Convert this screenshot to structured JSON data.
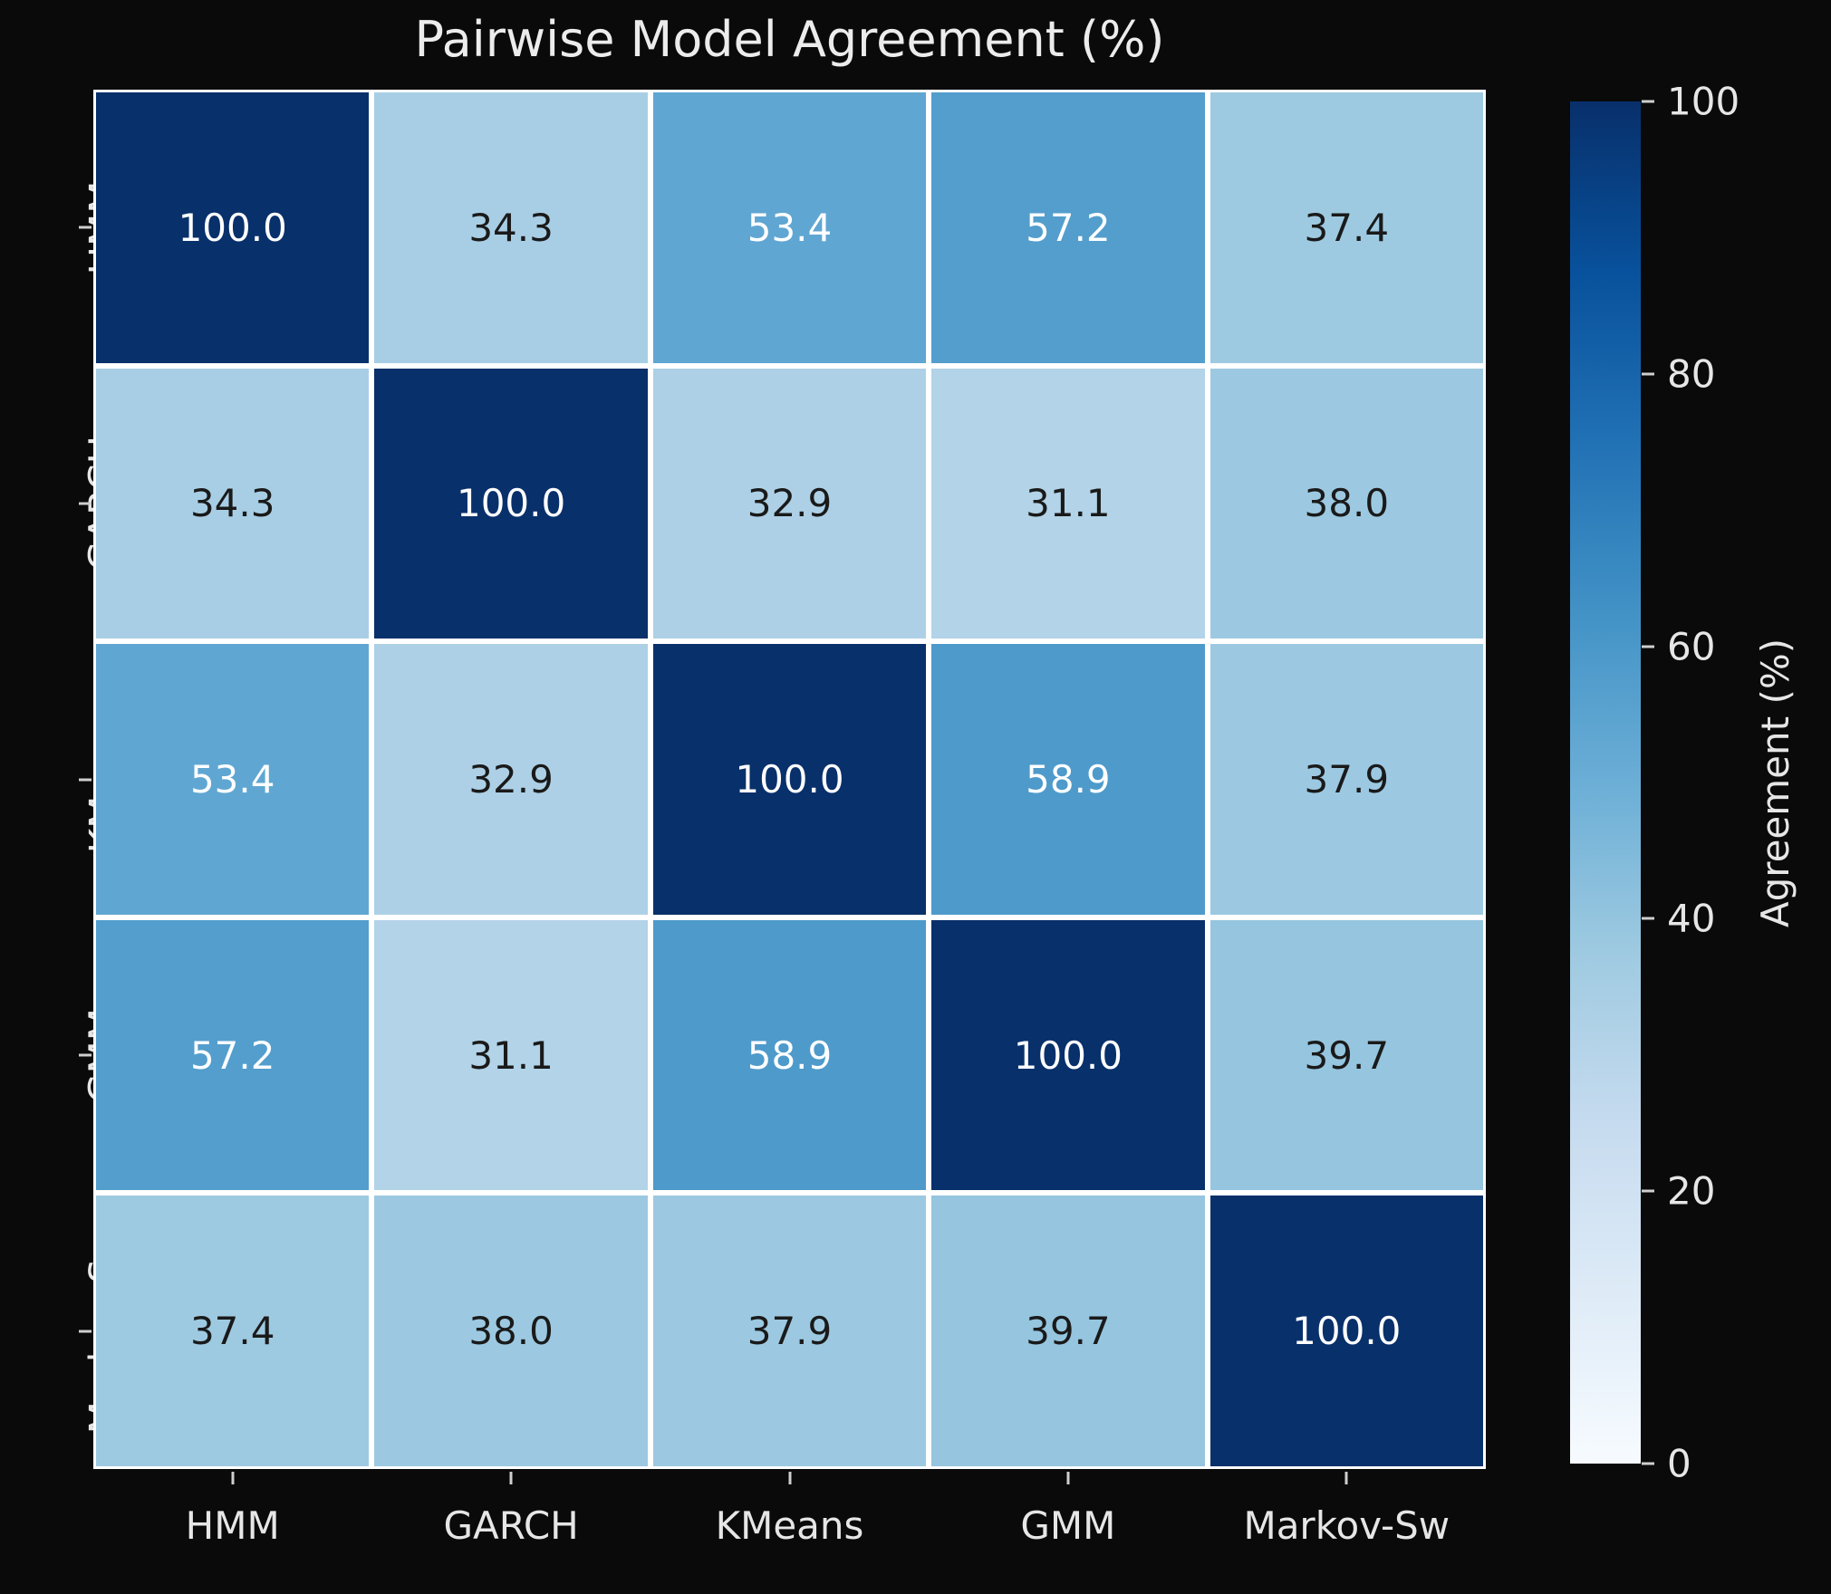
{
  "figure": {
    "background": "#0a0a0a",
    "text_color": "#e6e6e6",
    "title_color": "#ececec"
  },
  "chart_data": {
    "type": "heatmap",
    "title": "Pairwise Model Agreement (%)",
    "categories": [
      "HMM",
      "GARCH",
      "KMeans",
      "GMM",
      "Markov-Sw"
    ],
    "matrix": [
      [
        100.0,
        34.3,
        53.4,
        57.2,
        37.4
      ],
      [
        34.3,
        100.0,
        32.9,
        31.1,
        38.0
      ],
      [
        53.4,
        32.9,
        100.0,
        58.9,
        37.9
      ],
      [
        57.2,
        31.1,
        58.9,
        100.0,
        39.7
      ],
      [
        37.4,
        38.0,
        37.9,
        39.7,
        100.0
      ]
    ],
    "vmin": 0,
    "vmax": 100,
    "value_decimals": 1,
    "grid_color": "#ffffff",
    "colormap": {
      "name": "Blues",
      "anchors": [
        "#f7fbff",
        "#deebf7",
        "#c6dbef",
        "#9ecae1",
        "#6baed6",
        "#4292c6",
        "#2171b5",
        "#08519c",
        "#08306b"
      ]
    },
    "annotation_colors": {
      "light": "#ffffff",
      "dark": "#1a1a1a",
      "white_text_threshold": 50
    },
    "colorbar": {
      "label": "Agreement (%)",
      "ticks": [
        100,
        80,
        60,
        40,
        20,
        0
      ]
    }
  }
}
